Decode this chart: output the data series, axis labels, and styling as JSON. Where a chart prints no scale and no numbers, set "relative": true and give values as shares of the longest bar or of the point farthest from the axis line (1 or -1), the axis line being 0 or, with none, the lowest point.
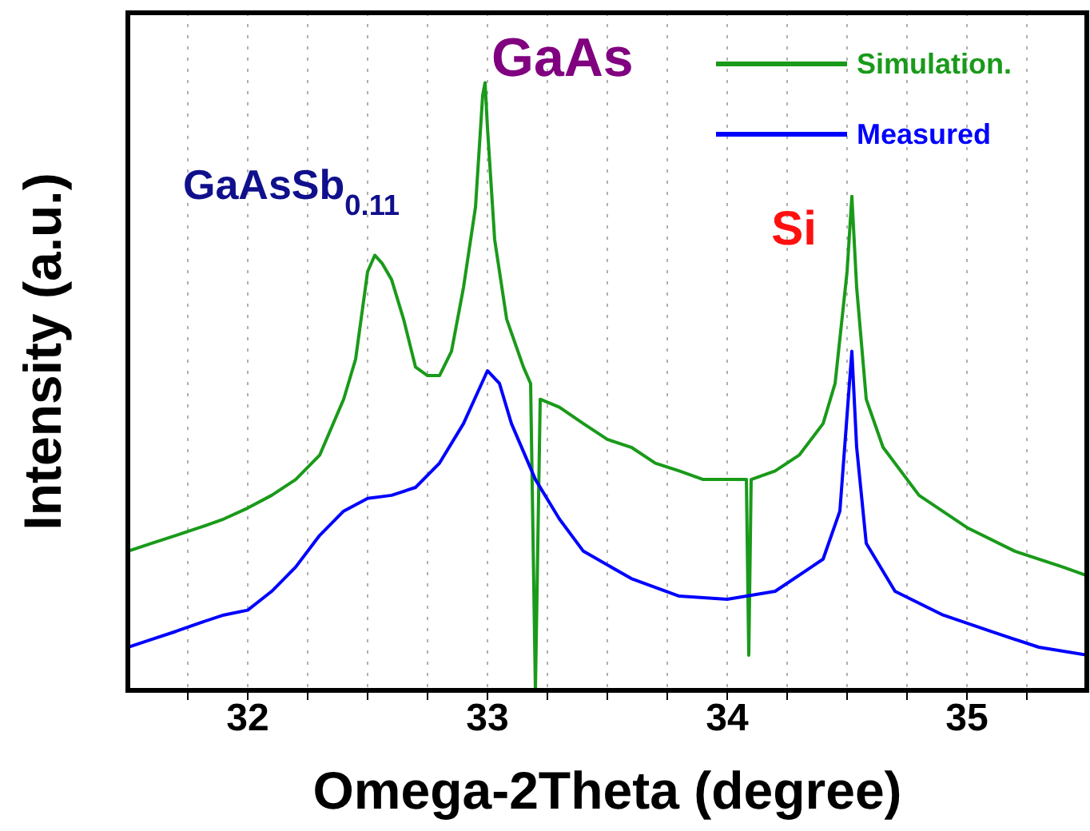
{
  "chart_data": {
    "type": "line",
    "relative": true,
    "xlabel": "Omega-2Theta (degree)",
    "ylabel": "Intensity (a.u.)",
    "xlim": [
      31.5,
      35.5
    ],
    "xticks": [
      {
        "value": 31.75,
        "label": null
      },
      32,
      {
        "value": 32.25,
        "label": null
      },
      {
        "value": 32.5,
        "label": null
      },
      {
        "value": 32.75,
        "label": null
      },
      33,
      {
        "value": 33.25,
        "label": null
      },
      {
        "value": 33.5,
        "label": null
      },
      {
        "value": 33.75,
        "label": null
      },
      34,
      {
        "value": 34.25,
        "label": null
      },
      {
        "value": 34.5,
        "label": null
      },
      {
        "value": 34.75,
        "label": null
      },
      35,
      {
        "value": 35.25,
        "label": null
      }
    ],
    "grid": "x",
    "legend": "top right",
    "tick_labels": "x",
    "line_style": "solid",
    "marker": "none",
    "annotations": [
      {
        "text": "GaAsSb$_{0.11}$",
        "x": 32.53,
        "y": 0.716
      },
      {
        "text": "GaAs",
        "x": 32.99,
        "y": 1
      },
      {
        "text": "Si",
        "x": 34.52,
        "y": 0.813
      }
    ],
    "series": [
      {
        "name": "Simulation.",
        "color": "#1a9a1a",
        "x": [
          31.5,
          31.6,
          31.7,
          31.8,
          31.9,
          32.0,
          32.1,
          32.2,
          32.3,
          32.4,
          32.45,
          32.5,
          32.53,
          32.56,
          32.6,
          32.65,
          32.7,
          32.75,
          32.8,
          32.85,
          32.9,
          32.95,
          32.98,
          32.99,
          33.0,
          33.03,
          33.08,
          33.15,
          33.18,
          33.2,
          33.22,
          33.3,
          33.4,
          33.5,
          33.6,
          33.7,
          33.8,
          33.9,
          34.0,
          34.08,
          34.09,
          34.1,
          34.2,
          34.3,
          34.4,
          34.45,
          34.5,
          34.52,
          34.54,
          34.58,
          34.65,
          34.8,
          35.0,
          35.2,
          35.4,
          35.5
        ],
        "values": [
          0.229,
          0.242,
          0.255,
          0.268,
          0.282,
          0.3,
          0.321,
          0.347,
          0.387,
          0.479,
          0.545,
          0.689,
          0.716,
          0.703,
          0.676,
          0.611,
          0.532,
          0.518,
          0.518,
          0.558,
          0.663,
          0.795,
          0.979,
          1,
          0.926,
          0.742,
          0.611,
          0.532,
          0.505,
          0,
          0.479,
          0.466,
          0.439,
          0.413,
          0.4,
          0.374,
          0.361,
          0.347,
          0.347,
          0.347,
          0.058,
          0.347,
          0.361,
          0.387,
          0.439,
          0.505,
          0.689,
          0.813,
          0.663,
          0.479,
          0.4,
          0.321,
          0.268,
          0.229,
          0.203,
          0.189
        ]
      },
      {
        "name": "Measured",
        "color": "#0000ff",
        "x": [
          31.5,
          31.6,
          31.7,
          31.8,
          31.9,
          32.0,
          32.1,
          32.2,
          32.3,
          32.4,
          32.5,
          32.6,
          32.7,
          32.8,
          32.9,
          33.0,
          33.05,
          33.1,
          33.2,
          33.3,
          33.4,
          33.6,
          33.8,
          34.0,
          34.2,
          34.4,
          34.47,
          34.5,
          34.52,
          34.54,
          34.58,
          34.7,
          34.9,
          35.1,
          35.3,
          35.5
        ],
        "values": [
          0.071,
          0.084,
          0.097,
          0.111,
          0.124,
          0.132,
          0.163,
          0.203,
          0.255,
          0.295,
          0.316,
          0.321,
          0.334,
          0.374,
          0.439,
          0.526,
          0.505,
          0.439,
          0.347,
          0.282,
          0.229,
          0.184,
          0.155,
          0.15,
          0.163,
          0.216,
          0.295,
          0.453,
          0.558,
          0.4,
          0.242,
          0.163,
          0.124,
          0.097,
          0.071,
          0.058
        ]
      }
    ]
  }
}
